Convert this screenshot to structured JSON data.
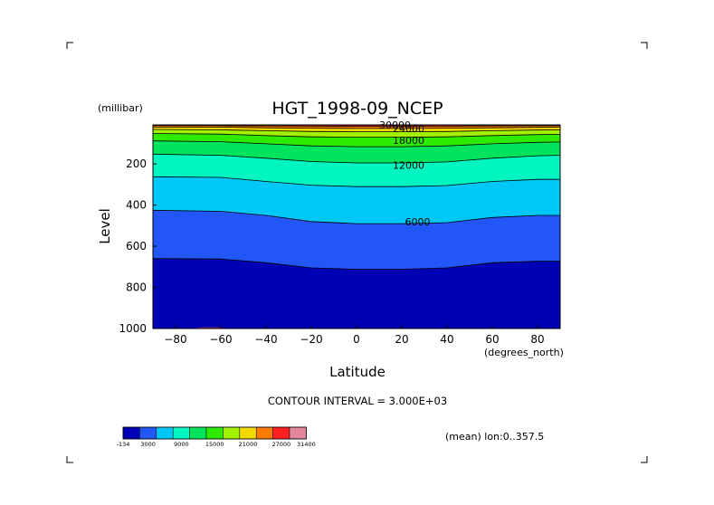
{
  "chart_data": {
    "type": "contour",
    "title": "HGT_1998-09_NCEP",
    "ylabel": "Level",
    "yunit": "(millibar)",
    "xlabel": "Latitude",
    "xunit": "(degrees_north)",
    "xlim": [
      -90,
      90
    ],
    "ylim": [
      1000,
      10
    ],
    "y_reversed": true,
    "xticks": [
      -80,
      -60,
      -40,
      -20,
      0,
      20,
      40,
      60,
      80
    ],
    "xtick_labels": [
      "−80",
      "−60",
      "−40",
      "−20",
      "0",
      "20",
      "40",
      "60",
      "80"
    ],
    "yticks": [
      200,
      400,
      600,
      800,
      1000
    ],
    "contour_interval_text": "CONTOUR INTERVAL = 3.000E+03",
    "mean_text": "(mean) lon:0..357.5",
    "contour_labels": [
      {
        "text": "30000",
        "x": 17,
        "y": 10
      },
      {
        "text": "24000",
        "x": 23,
        "y": 28
      },
      {
        "text": "18000",
        "x": 23,
        "y": 85
      },
      {
        "text": "12000",
        "x": 23,
        "y": 205
      },
      {
        "text": "6000",
        "x": 27,
        "y": 480
      }
    ],
    "contours": [
      {
        "value": 3000,
        "x": [
          -90,
          -60,
          -40,
          -20,
          0,
          20,
          40,
          60,
          80,
          90
        ],
        "y": [
          660,
          662,
          680,
          705,
          712,
          712,
          705,
          680,
          673,
          673
        ]
      },
      {
        "value": 6000,
        "x": [
          -90,
          -60,
          -40,
          -20,
          0,
          20,
          40,
          60,
          80,
          90
        ],
        "y": [
          425,
          430,
          450,
          480,
          490,
          490,
          485,
          460,
          450,
          450
        ]
      },
      {
        "value": 9000,
        "x": [
          -90,
          -60,
          -40,
          -20,
          0,
          20,
          40,
          60,
          80,
          90
        ],
        "y": [
          262,
          265,
          285,
          303,
          310,
          310,
          305,
          285,
          275,
          275
        ]
      },
      {
        "value": 12000,
        "x": [
          -90,
          -60,
          -40,
          -20,
          0,
          20,
          40,
          60,
          80,
          90
        ],
        "y": [
          152,
          158,
          172,
          188,
          195,
          195,
          190,
          172,
          160,
          158
        ]
      },
      {
        "value": 15000,
        "x": [
          -90,
          -60,
          -40,
          -20,
          0,
          20,
          40,
          60,
          80,
          90
        ],
        "y": [
          88,
          92,
          102,
          112,
          116,
          116,
          112,
          102,
          95,
          93
        ]
      },
      {
        "value": 18000,
        "x": [
          -90,
          -60,
          -40,
          -20,
          0,
          20,
          40,
          60,
          80,
          90
        ],
        "y": [
          52,
          55,
          62,
          68,
          70,
          70,
          68,
          62,
          57,
          56
        ]
      },
      {
        "value": 21000,
        "x": [
          -90,
          -60,
          -40,
          -20,
          0,
          20,
          40,
          60,
          80,
          90
        ],
        "y": [
          32,
          34,
          38,
          42,
          43,
          43,
          42,
          38,
          35,
          34
        ]
      },
      {
        "value": 24000,
        "x": [
          -90,
          -60,
          -40,
          -20,
          0,
          20,
          40,
          60,
          80,
          90
        ],
        "y": [
          20,
          21,
          24,
          26,
          27,
          27,
          26,
          24,
          22,
          21
        ]
      },
      {
        "value": 27000,
        "x": [
          -90,
          -60,
          -40,
          -20,
          0,
          20,
          40,
          60,
          80,
          90
        ],
        "y": [
          13,
          14,
          15,
          16,
          17,
          17,
          16,
          15,
          14,
          14
        ]
      },
      {
        "value": 30000,
        "x": [
          -90,
          -60,
          -40,
          -20,
          0,
          20,
          40,
          60,
          80,
          90
        ],
        "y": [
          11,
          11,
          11,
          11,
          11,
          11,
          11,
          11,
          11,
          11
        ]
      }
    ],
    "fill_colors": [
      "#0000b4",
      "#2256f6",
      "#00c8f6",
      "#00f5c0",
      "#00e35c",
      "#2dea00",
      "#a3f000",
      "#f3d800",
      "#ff7a00",
      "#fe2020",
      "#e4869b"
    ],
    "polar_patch": {
      "color": "#a5386a",
      "x": [
        -72,
        -58
      ],
      "ptop": 994
    },
    "colorbar": {
      "colors": [
        "#0000b4",
        "#2256f6",
        "#00c8f6",
        "#00f5c0",
        "#00e35c",
        "#2dea00",
        "#a3f000",
        "#f3d800",
        "#ff7a00",
        "#fe2020",
        "#e4869b"
      ],
      "labels": [
        "-134",
        "3000",
        "9000",
        "15000",
        "21000",
        "27000",
        "31400"
      ]
    }
  }
}
